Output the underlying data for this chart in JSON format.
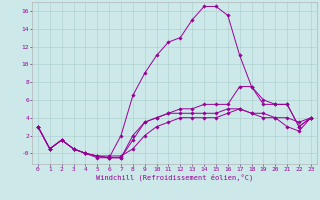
{
  "xlabel": "Windchill (Refroidissement éolien,°C)",
  "background_color": "#cce8e8",
  "grid_color": "#aacccc",
  "line_color": "#990099",
  "spine_color": "#aaaaaa",
  "xlim": [
    -0.5,
    23.5
  ],
  "ylim": [
    -1.2,
    17.0
  ],
  "xticks": [
    0,
    1,
    2,
    3,
    4,
    5,
    6,
    7,
    8,
    9,
    10,
    11,
    12,
    13,
    14,
    15,
    16,
    17,
    18,
    19,
    20,
    21,
    22,
    23
  ],
  "yticks": [
    0,
    2,
    4,
    6,
    8,
    10,
    12,
    14,
    16
  ],
  "ytick_labels": [
    "-0",
    "2",
    "4",
    "6",
    "8",
    "10",
    "12",
    "14",
    "16"
  ],
  "line1_y": [
    3.0,
    0.5,
    1.5,
    0.5,
    0.0,
    -0.3,
    -0.5,
    2.0,
    6.5,
    9.0,
    11.0,
    12.5,
    13.0,
    15.0,
    16.5,
    16.5,
    15.5,
    11.0,
    7.5,
    5.5,
    5.5,
    5.5,
    3.0,
    4.0
  ],
  "line2_y": [
    3.0,
    0.5,
    1.5,
    0.5,
    0.0,
    -0.5,
    -0.5,
    -0.5,
    2.0,
    3.5,
    4.0,
    4.5,
    4.5,
    4.5,
    4.5,
    4.5,
    5.0,
    5.0,
    4.5,
    4.5,
    4.0,
    4.0,
    3.5,
    4.0
  ],
  "line3_y": [
    3.0,
    0.5,
    1.5,
    0.5,
    0.0,
    -0.3,
    -0.3,
    -0.3,
    0.5,
    2.0,
    3.0,
    3.5,
    4.0,
    4.0,
    4.0,
    4.0,
    4.5,
    5.0,
    4.5,
    4.0,
    4.0,
    3.0,
    2.5,
    4.0
  ],
  "line4_y": [
    3.0,
    0.5,
    1.5,
    0.5,
    0.0,
    -0.3,
    -0.5,
    -0.5,
    1.5,
    3.5,
    4.0,
    4.5,
    5.0,
    5.0,
    5.5,
    5.5,
    5.5,
    7.5,
    7.5,
    6.0,
    5.5,
    5.5,
    3.0,
    4.0
  ],
  "tick_fontsize": 4.5,
  "xlabel_fontsize": 5.0,
  "marker_size": 1.8,
  "line_width": 0.7
}
